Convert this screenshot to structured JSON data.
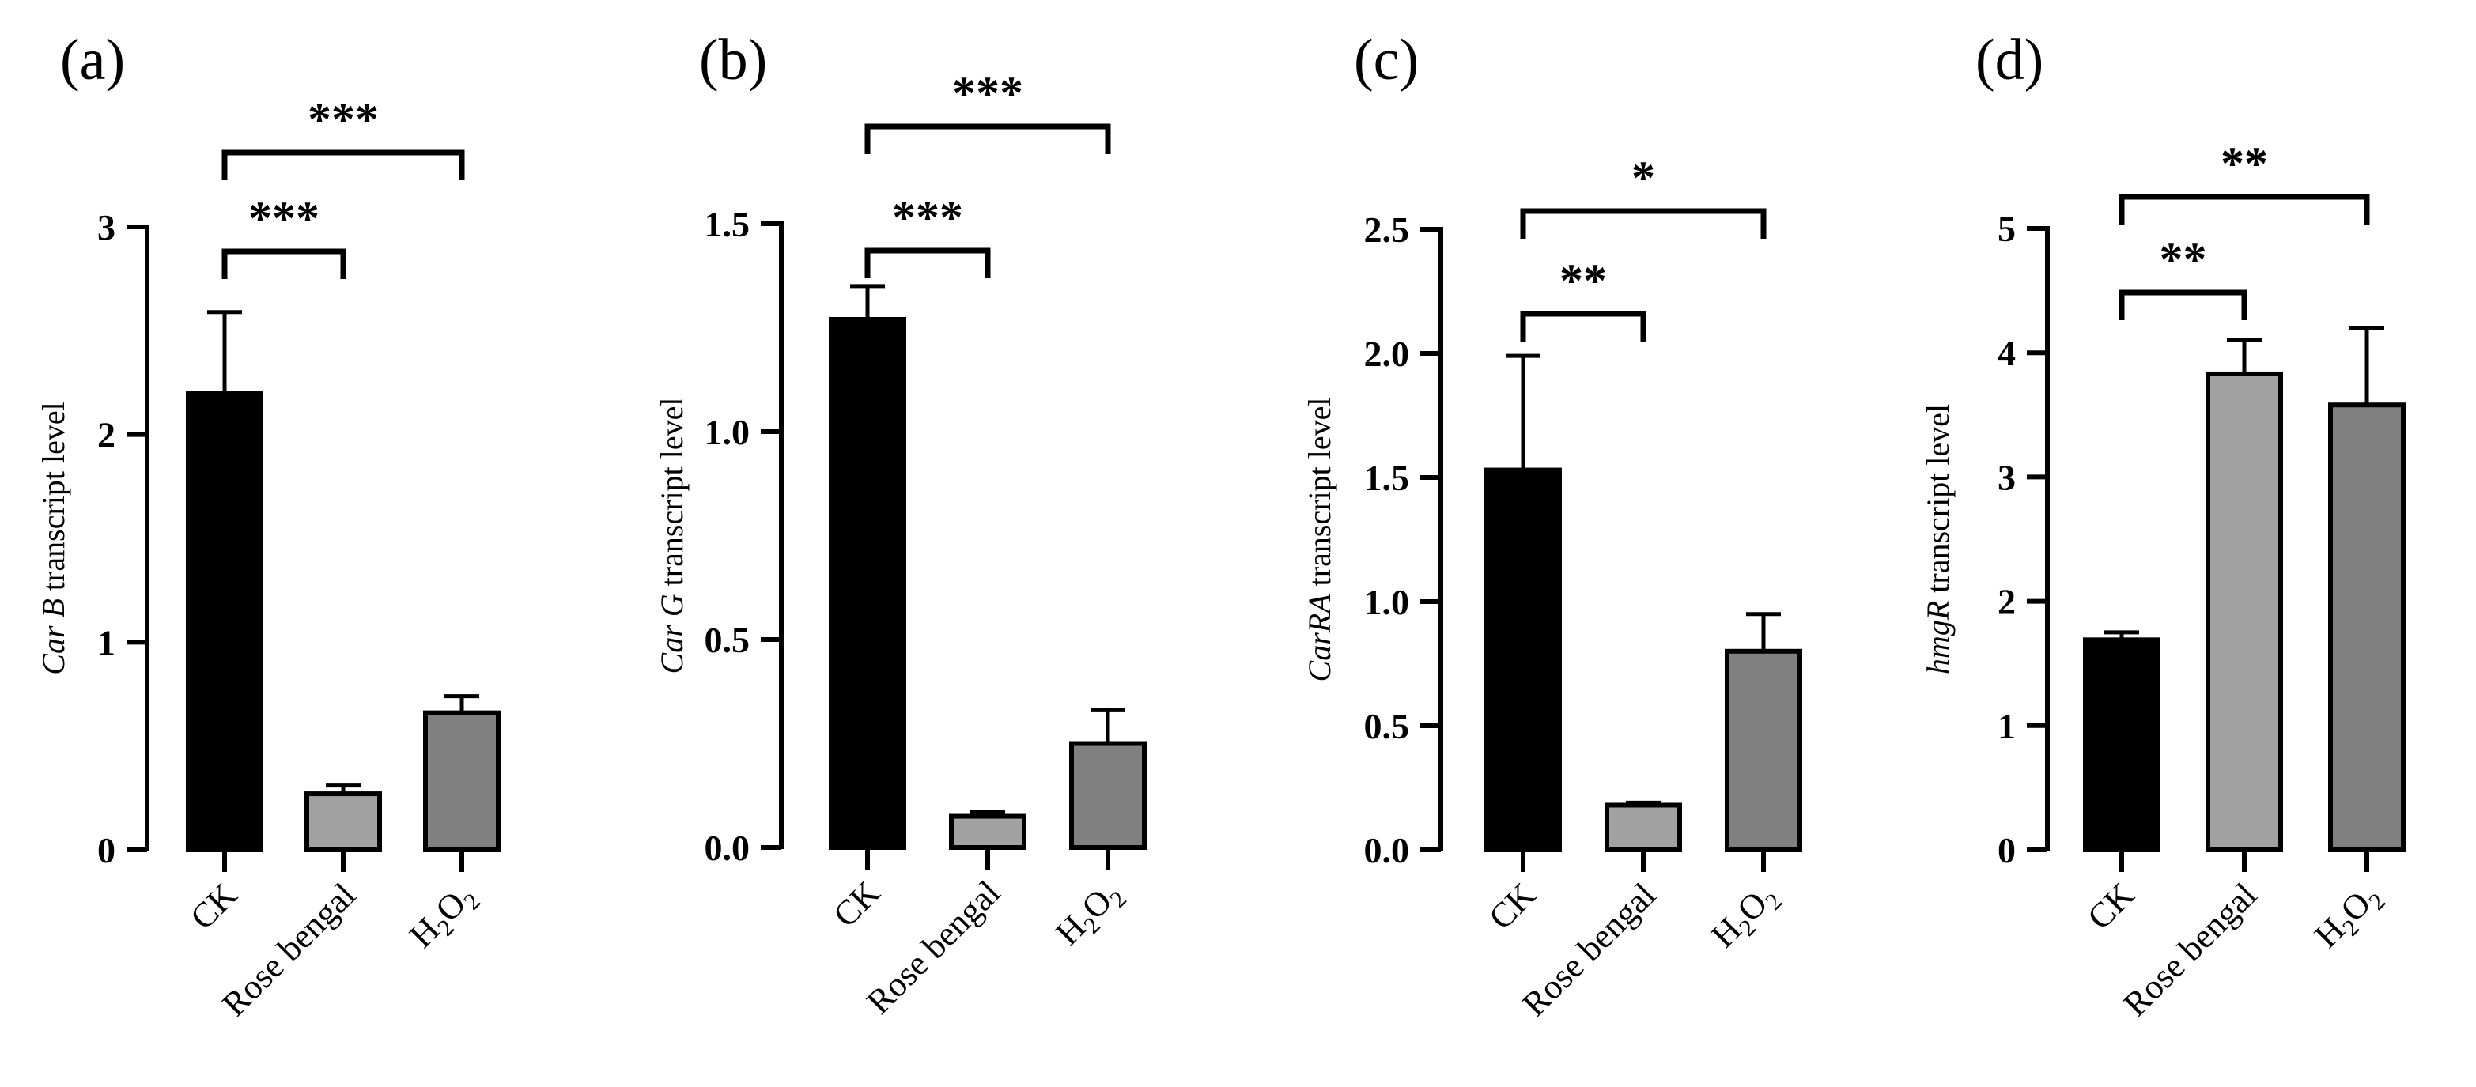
{
  "figure_title": "",
  "chart_data": [
    {
      "type": "bar",
      "panel": "(a)",
      "title": "",
      "ylabel_gene": "Car B",
      "ylabel_rest": " transcript level",
      "categories": [
        "CK",
        "Rose bengal",
        "H2O2"
      ],
      "values": [
        2.2,
        0.27,
        0.66
      ],
      "errors": [
        0.39,
        0.04,
        0.08
      ],
      "bar_colors": [
        "#000000",
        "#a2a2a2",
        "#808080"
      ],
      "ylim": [
        0,
        3
      ],
      "yticks": [
        0,
        1,
        2,
        3
      ],
      "ytick_labels": [
        "0",
        "1",
        "2",
        "3"
      ],
      "comparisons": [
        {
          "from": 0,
          "to": 1,
          "label": "***"
        },
        {
          "from": 0,
          "to": 2,
          "label": "***"
        }
      ]
    },
    {
      "type": "bar",
      "panel": "(b)",
      "title": "",
      "ylabel_gene": "Car G",
      "ylabel_rest": " transcript level",
      "categories": [
        "CK",
        "Rose bengal",
        "H2O2"
      ],
      "values": [
        1.27,
        0.075,
        0.25
      ],
      "errors": [
        0.08,
        0.01,
        0.08
      ],
      "bar_colors": [
        "#000000",
        "#a2a2a2",
        "#808080"
      ],
      "ylim": [
        0,
        1.5
      ],
      "yticks": [
        0,
        0.5,
        1.0,
        1.5
      ],
      "ytick_labels": [
        "0.0",
        "0.5",
        "1.0",
        "1.5"
      ],
      "comparisons": [
        {
          "from": 0,
          "to": 1,
          "label": "***"
        },
        {
          "from": 0,
          "to": 2,
          "label": "***"
        }
      ]
    },
    {
      "type": "bar",
      "panel": "(c)",
      "title": "",
      "ylabel_gene": "CarRA",
      "ylabel_rest": " transcript level",
      "categories": [
        "CK",
        "Rose bengal",
        "H2O2"
      ],
      "values": [
        1.53,
        0.18,
        0.8
      ],
      "errors": [
        0.46,
        0.01,
        0.15
      ],
      "bar_colors": [
        "#000000",
        "#a2a2a2",
        "#808080"
      ],
      "ylim": [
        0,
        2.5
      ],
      "yticks": [
        0,
        0.5,
        1.0,
        1.5,
        2.0,
        2.5
      ],
      "ytick_labels": [
        "0.0",
        "0.5",
        "1.0",
        "1.5",
        "2.0",
        "2.5"
      ],
      "comparisons": [
        {
          "from": 0,
          "to": 1,
          "label": "**"
        },
        {
          "from": 0,
          "to": 2,
          "label": "*"
        }
      ]
    },
    {
      "type": "bar",
      "panel": "(d)",
      "title": "",
      "ylabel_gene": "hmgR",
      "ylabel_rest": " transcript level",
      "categories": [
        "CK",
        "Rose bengal",
        "H2O2"
      ],
      "values": [
        1.69,
        3.83,
        3.58
      ],
      "errors": [
        0.06,
        0.27,
        0.62
      ],
      "bar_colors": [
        "#000000",
        "#a2a2a2",
        "#808080"
      ],
      "ylim": [
        0,
        5
      ],
      "yticks": [
        0,
        1,
        2,
        3,
        4,
        5
      ],
      "ytick_labels": [
        "0",
        "1",
        "2",
        "3",
        "4",
        "5"
      ],
      "comparisons": [
        {
          "from": 0,
          "to": 1,
          "label": "**"
        },
        {
          "from": 0,
          "to": 2,
          "label": "**"
        }
      ]
    }
  ]
}
